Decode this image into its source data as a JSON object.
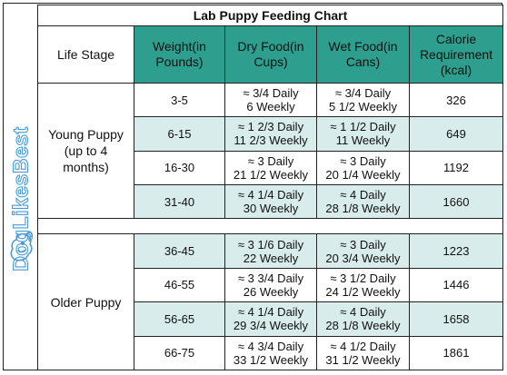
{
  "brand": {
    "name": "DogLikesBest",
    "logo_icon": "dog-icon",
    "color": "#4a9bd6"
  },
  "title": "Lab Puppy Feeding Chart",
  "headers": {
    "life_stage": "Life Stage",
    "weight": [
      "Weight(in",
      "Pounds)"
    ],
    "dry": [
      "Dry Food(in",
      "Cups)"
    ],
    "wet": [
      "Wet Food(in",
      "Cans)"
    ],
    "calorie": [
      "Calorie",
      "Requirement",
      "(kcal)"
    ]
  },
  "colors": {
    "header_bg": "#2e9e8f",
    "alt_row_bg": "#d8ecec"
  },
  "groups": [
    {
      "stage": [
        "Young Puppy",
        "(up to 4",
        "months)"
      ],
      "rows": [
        {
          "weight": "3-5",
          "dry_daily": "≈ 3/4 Daily",
          "dry_weekly": "6 Weekly",
          "wet_daily": "≈ 3/4 Daily",
          "wet_weekly": "5 1/2 Weekly",
          "kcal": "326"
        },
        {
          "weight": "6-15",
          "dry_daily": "≈ 1 2/3 Daily",
          "dry_weekly": "11 2/3 Weekly",
          "wet_daily": "≈ 1 1/2 Daily",
          "wet_weekly": "11 Weekly",
          "kcal": "649"
        },
        {
          "weight": "16-30",
          "dry_daily": "≈ 3 Daily",
          "dry_weekly": "21 1/2  Weekly",
          "wet_daily": "≈ 3 Daily",
          "wet_weekly": "20 1/4 Weekly",
          "kcal": "1192"
        },
        {
          "weight": "31-40",
          "dry_daily": "≈ 4 1/4 Daily",
          "dry_weekly": "30 Weekly",
          "wet_daily": "≈ 4 Daily",
          "wet_weekly": "28 1/8 Weekly",
          "kcal": "1660"
        }
      ]
    },
    {
      "stage": [
        "Older Puppy"
      ],
      "rows": [
        {
          "weight": "36-45",
          "dry_daily": "≈ 3 1/6 Daily",
          "dry_weekly": "22 Weekly",
          "wet_daily": "≈ 3 Daily",
          "wet_weekly": "20 3/4 Weekly",
          "kcal": "1223"
        },
        {
          "weight": "46-55",
          "dry_daily": "≈ 3 3/4 Daily",
          "dry_weekly": "26 Weekly",
          "wet_daily": "≈ 3 1/2 Daily",
          "wet_weekly": "24 1/2 Weekly",
          "kcal": "1446"
        },
        {
          "weight": "56-65",
          "dry_daily": "≈ 4 1/4 Daily",
          "dry_weekly": "29 3/4 Weekly",
          "wet_daily": "≈ 4 Daily",
          "wet_weekly": "28 1/8 Weekly",
          "kcal": "1658"
        },
        {
          "weight": "66-75",
          "dry_daily": "≈ 4 3/4 Daily",
          "dry_weekly": "33 1/2 Weekly",
          "wet_daily": "≈ 4 1/2 Daily",
          "wet_weekly": "31 1/2 Weekly",
          "kcal": "1861"
        }
      ]
    }
  ]
}
